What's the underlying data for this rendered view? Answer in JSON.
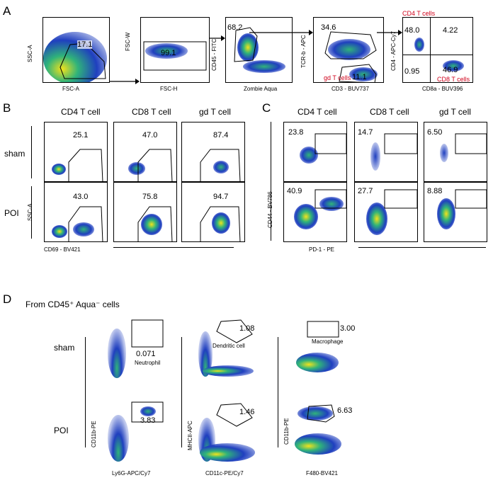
{
  "panels": {
    "A": "A",
    "B": "B",
    "C": "C",
    "D": "D"
  },
  "panelA": {
    "p1": {
      "y": "SSC-A",
      "x": "FSC-A",
      "pct": "17.1"
    },
    "p2": {
      "y": "FSC-W",
      "x": "FSC-H",
      "pct": "99.1"
    },
    "p3": {
      "y": "CD45 - FITC",
      "x": "Zombie Aqua",
      "pct": "68.2"
    },
    "p4": {
      "y": "TCR-b - APC",
      "x": "CD3 - BUV737",
      "pct_top": "34.6",
      "pct_bottom": "11.1",
      "gd": "gd T cells"
    },
    "p5": {
      "y": "CD4 - APC-Cy7",
      "x": "CD8a - BUV396",
      "q1": "48.0",
      "q2": "4.22",
      "q3": "0.95",
      "q4": "46.9",
      "cd4": "CD4 T cells",
      "cd8": "CD8 T cells"
    }
  },
  "panelB": {
    "cols": [
      "CD4 T cell",
      "CD8 T cell",
      "gd T cell"
    ],
    "rows": [
      "sham",
      "POI"
    ],
    "ylabel": "SSC-A",
    "xlabel": "CD69 - BV421",
    "values": [
      [
        "25.1",
        "47.0",
        "87.4"
      ],
      [
        "43.0",
        "75.8",
        "94.7"
      ]
    ]
  },
  "panelC": {
    "cols": [
      "CD4 T cell",
      "CD8 T cell",
      "gd T cell"
    ],
    "ylabel": "CD44 - BV786",
    "xlabel": "PD-1 - PE",
    "values": [
      [
        "23.8",
        "14.7",
        "6.50"
      ],
      [
        "40.9",
        "27.7",
        "8.88"
      ]
    ]
  },
  "panelD": {
    "title": "From CD45⁺ Aqua⁻ cells",
    "rows": [
      "sham",
      "POI"
    ],
    "cols": [
      {
        "y": "CD11b-PE",
        "x": "Ly6G-APC/Cy7",
        "cell": "Neutrophil",
        "sham": "0.071",
        "poi": "3.83"
      },
      {
        "y": "MHCII-APC",
        "x": "CD11c-PE/Cy7",
        "cell": "Dendritic cell",
        "sham": "1.08",
        "poi": "1.46"
      },
      {
        "y": "CD11b-PE",
        "x": "F480-BV421",
        "cell": "Macrophage",
        "sham": "3.00",
        "poi": "6.63"
      }
    ]
  },
  "colors": {
    "text": "#000000",
    "accent_red": "#d0021b",
    "density_low": "#1f3fbf",
    "density_mid": "#2fb37a",
    "density_high": "#f2e21b"
  }
}
